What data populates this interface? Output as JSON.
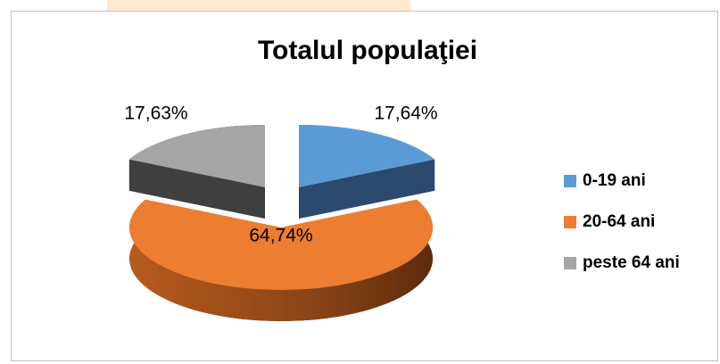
{
  "chart_data": {
    "type": "pie",
    "title": "Totalul populaţiei",
    "categories": [
      "0-19 ani",
      "20-64 ani",
      "peste 64 ani"
    ],
    "values": [
      17.64,
      64.74,
      17.63
    ],
    "value_labels": [
      "17,64%",
      "64,74%",
      "17,63%"
    ],
    "colors": [
      "#5b9bd5",
      "#ed7d31",
      "#a5a5a5"
    ],
    "legend": "right"
  }
}
